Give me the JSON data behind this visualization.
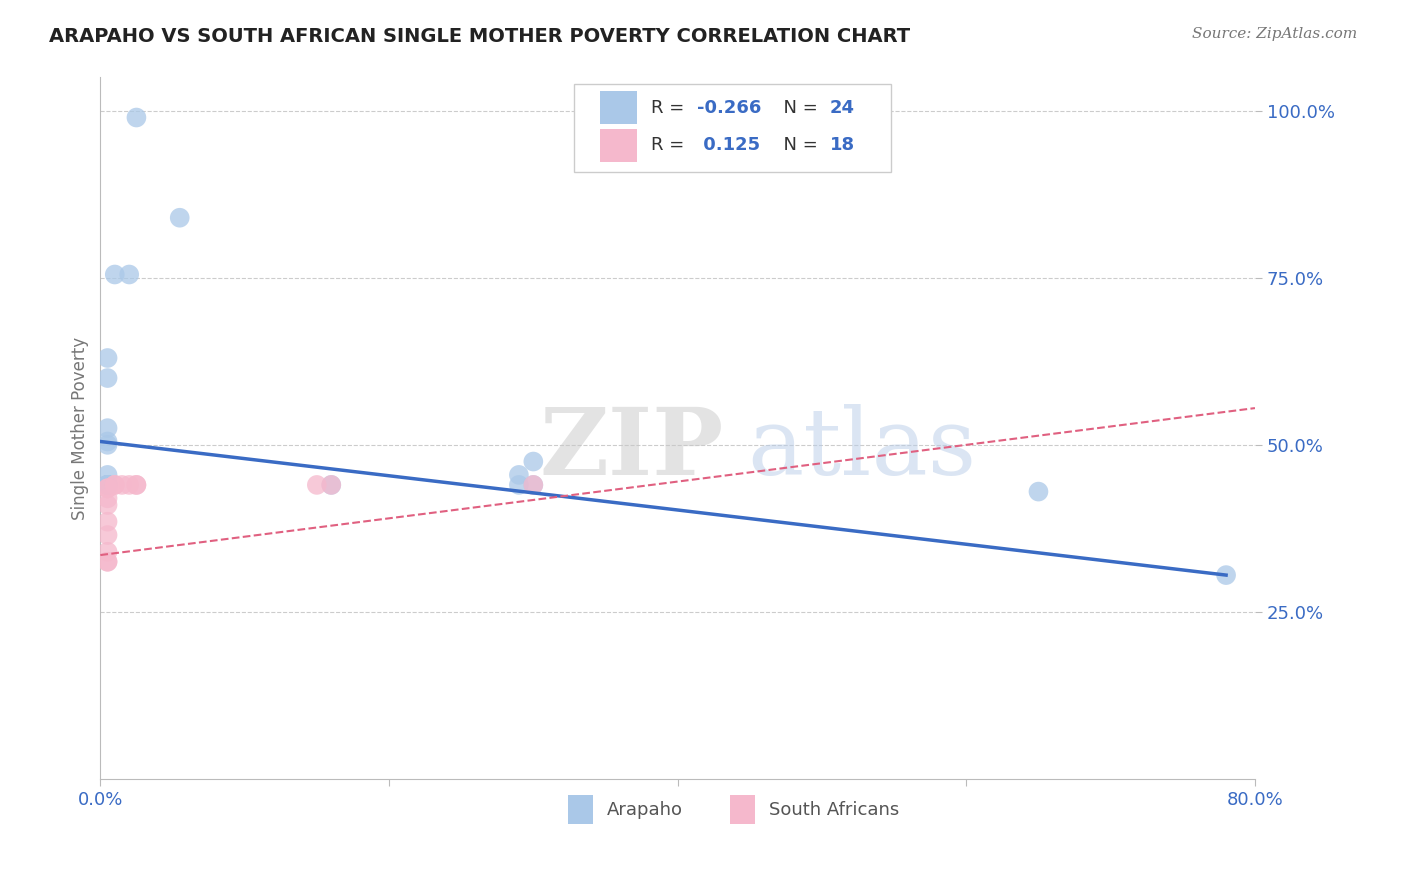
{
  "title": "ARAPAHO VS SOUTH AFRICAN SINGLE MOTHER POVERTY CORRELATION CHART",
  "source": "Source: ZipAtlas.com",
  "ylabel": "Single Mother Poverty",
  "xlim": [
    0.0,
    0.8
  ],
  "ylim": [
    0.0,
    1.05
  ],
  "xtick_positions": [
    0.0,
    0.2,
    0.4,
    0.6,
    0.8
  ],
  "ytick_positions": [
    0.25,
    0.5,
    0.75,
    1.0
  ],
  "ytick_labels": [
    "25.0%",
    "50.0%",
    "75.0%",
    "100.0%"
  ],
  "arapaho_x": [
    0.025,
    0.055,
    0.01,
    0.02,
    0.005,
    0.005,
    0.005,
    0.005,
    0.005,
    0.005,
    0.005,
    0.005,
    0.005,
    0.005,
    0.005,
    0.005,
    0.005,
    0.3,
    0.29,
    0.16,
    0.29,
    0.3,
    0.65,
    0.78
  ],
  "arapaho_y": [
    0.99,
    0.84,
    0.755,
    0.755,
    0.63,
    0.6,
    0.525,
    0.505,
    0.5,
    0.455,
    0.44,
    0.44,
    0.44,
    0.44,
    0.44,
    0.44,
    0.44,
    0.475,
    0.455,
    0.44,
    0.44,
    0.44,
    0.43,
    0.305
  ],
  "sa_x": [
    0.005,
    0.005,
    0.005,
    0.005,
    0.005,
    0.005,
    0.005,
    0.005,
    0.005,
    0.01,
    0.01,
    0.015,
    0.02,
    0.025,
    0.025,
    0.15,
    0.16,
    0.3
  ],
  "sa_y": [
    0.325,
    0.325,
    0.34,
    0.365,
    0.385,
    0.41,
    0.42,
    0.435,
    0.435,
    0.44,
    0.44,
    0.44,
    0.44,
    0.44,
    0.44,
    0.44,
    0.44,
    0.44
  ],
  "arapaho_R": -0.266,
  "arapaho_N": 24,
  "sa_R": 0.125,
  "sa_N": 18,
  "arapaho_color": "#aac8e8",
  "arapaho_line_color": "#3a6bc4",
  "sa_color": "#f5b8cc",
  "sa_line_color": "#e06080",
  "grid_color": "#cccccc",
  "watermark_zip": "ZIP",
  "watermark_atlas": "atlas",
  "legend_label_arapaho": "Arapaho",
  "legend_label_sa": "South Africans",
  "r_color_blue": "#3a6bc4",
  "r_color_pink": "#e06080",
  "blue_line_x0": 0.0,
  "blue_line_y0": 0.505,
  "blue_line_x1": 0.78,
  "blue_line_y1": 0.305,
  "pink_line_x0": 0.0,
  "pink_line_y0": 0.335,
  "pink_line_x1": 0.8,
  "pink_line_y1": 0.555
}
